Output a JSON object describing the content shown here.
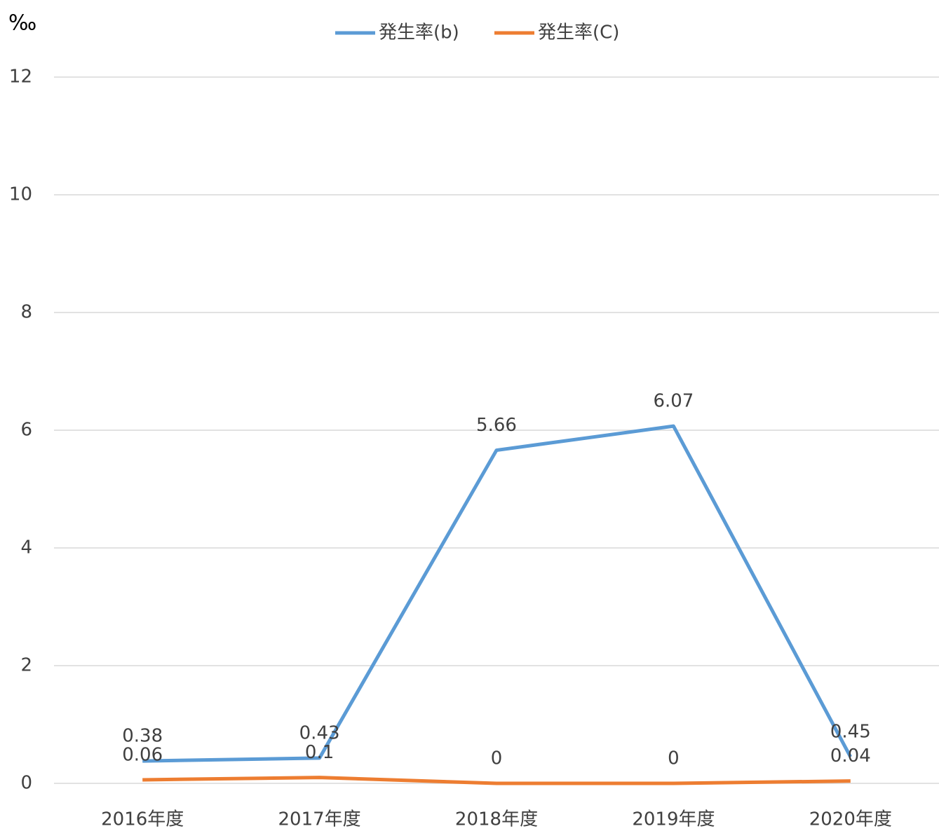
{
  "chart_data": {
    "type": "line",
    "y_axis_label": "‰",
    "categories": [
      "2016年度",
      "2017年度",
      "2018年度",
      "2019年度",
      "2020年度"
    ],
    "series": [
      {
        "name": "発生率(b)",
        "color": "#5b9bd5",
        "values": [
          0.38,
          0.43,
          5.66,
          6.07,
          0.45
        ]
      },
      {
        "name": "発生率(C)",
        "color": "#ed7d31",
        "values": [
          0.06,
          0.1,
          0,
          0,
          0.04
        ]
      }
    ],
    "ylim": [
      0,
      12
    ],
    "yticks": [
      0,
      2,
      4,
      6,
      8,
      10,
      12
    ],
    "grid": true,
    "legend": "top"
  }
}
